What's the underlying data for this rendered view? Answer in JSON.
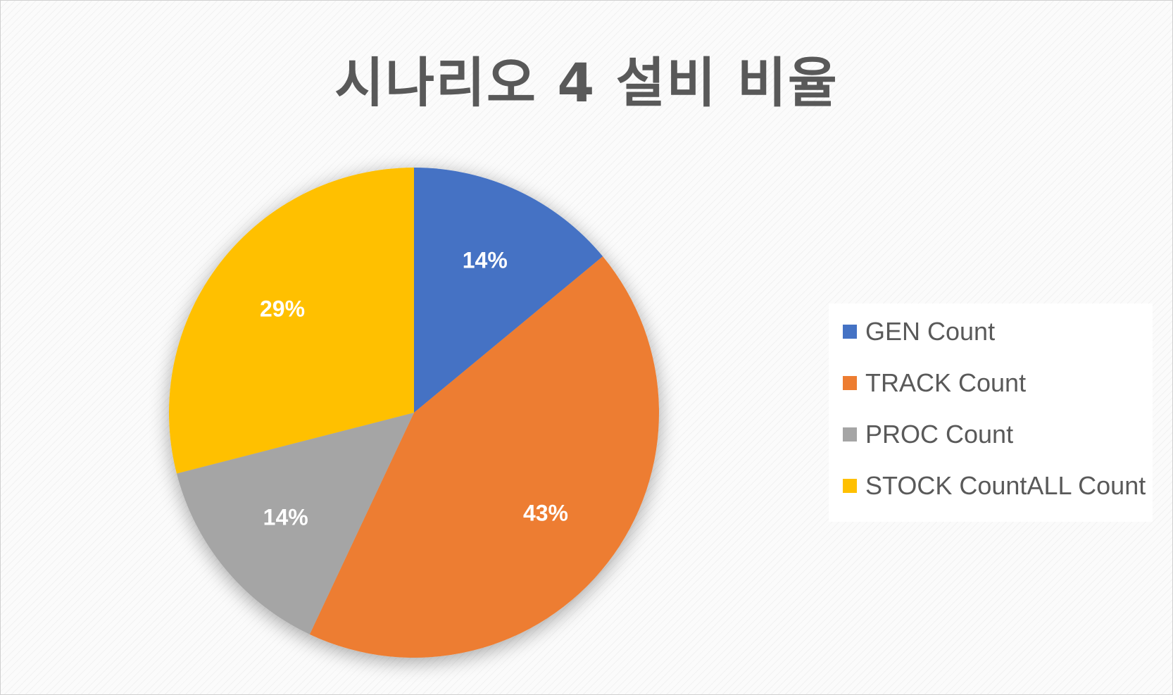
{
  "chart_data": {
    "type": "pie",
    "title": "시나리오 4 설비 비율",
    "categories": [
      "GEN Count",
      "TRACK Count",
      "PROC Count",
      "STOCK CountALL Count"
    ],
    "values": [
      14,
      43,
      14,
      29
    ],
    "data_labels": [
      "14%",
      "43%",
      "14%",
      "29%"
    ],
    "colors": [
      "#4472C4",
      "#ED7D31",
      "#A5A5A5",
      "#FFC000"
    ],
    "legend_position": "right"
  }
}
